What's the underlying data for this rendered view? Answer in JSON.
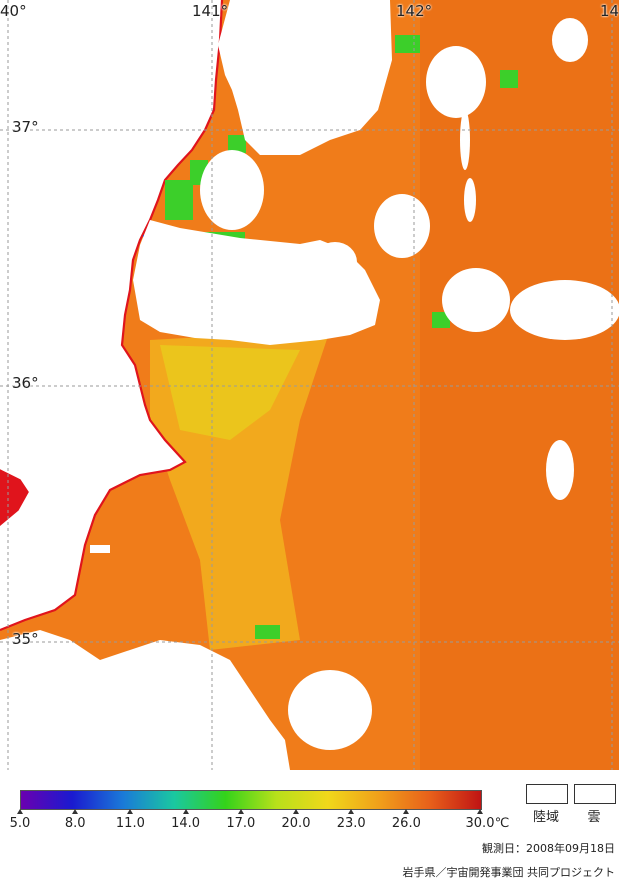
{
  "map": {
    "lon_labels": [
      "40°",
      "141°",
      "142°",
      "14"
    ],
    "lat_labels": [
      "37°",
      "36°",
      "35°"
    ],
    "colors": {
      "land": "#ffffff",
      "cloud": "#ffffff",
      "coastline": "#e0141c",
      "grid": "#9a9a9a",
      "sea_base": "#f07c1a",
      "sea_warm": "#e86a14",
      "sea_cool": "#f2b21e",
      "sea_cooler": "#e8d21c",
      "cold_green": "#3ccf2a",
      "cold_blue": "#1a3ad0"
    }
  },
  "legend": {
    "ticks": [
      "5.0",
      "8.0",
      "11.0",
      "14.0",
      "17.0",
      "20.0",
      "23.0",
      "26.0",
      "30.0"
    ],
    "unit": "℃",
    "land_label": "陸域",
    "cloud_label": "雲",
    "colorbar_colors": [
      "#6a00b0",
      "#1a1ad0",
      "#1a7ad8",
      "#1ac8a0",
      "#34d21a",
      "#b8e01a",
      "#f0d81a",
      "#f0a01a",
      "#e8601a",
      "#c01414"
    ]
  },
  "footer": {
    "observation_date": "観測日：2008年09月18日",
    "credit": "岩手県／宇宙開発事業団 共同プロジェクト"
  }
}
